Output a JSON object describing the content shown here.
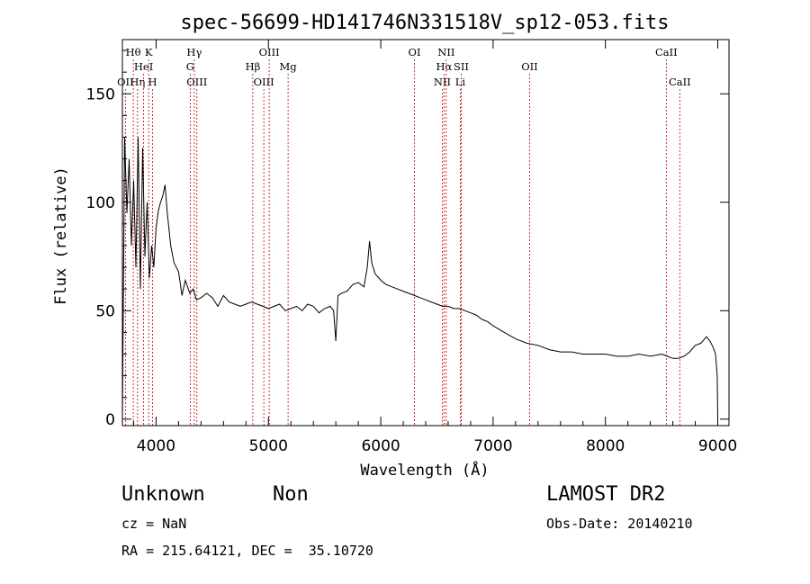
{
  "chart_data": {
    "type": "line",
    "title": "spec-56699-HD141746N331518V_sp12-053.fits",
    "xlabel": "Wavelength (Å)",
    "ylabel": "Flux (relative)",
    "xlim": [
      3700,
      9100
    ],
    "ylim": [
      -3,
      175
    ],
    "xticks": [
      4000,
      5000,
      6000,
      7000,
      8000,
      9000
    ],
    "yticks": [
      0,
      50,
      100,
      150
    ],
    "grid": false,
    "series": [
      {
        "x": [
          3700,
          3720,
          3740,
          3760,
          3780,
          3800,
          3820,
          3840,
          3860,
          3880,
          3900,
          3920,
          3940,
          3960,
          3980,
          4000,
          4020,
          4040,
          4060,
          4080,
          4100,
          4130,
          4160,
          4200,
          4230,
          4260,
          4300,
          4330,
          4360,
          4400,
          4450,
          4500,
          4550,
          4600,
          4650,
          4700,
          4750,
          4800,
          4850,
          4900,
          4950,
          5000,
          5050,
          5100,
          5150,
          5200,
          5250,
          5300,
          5350,
          5400,
          5450,
          5500,
          5550,
          5580,
          5600,
          5620,
          5650,
          5700,
          5750,
          5800,
          5850,
          5880,
          5900,
          5920,
          5950,
          6000,
          6050,
          6100,
          6150,
          6200,
          6250,
          6300,
          6350,
          6400,
          6450,
          6500,
          6550,
          6600,
          6650,
          6700,
          6750,
          6800,
          6850,
          6900,
          6950,
          7000,
          7100,
          7200,
          7300,
          7400,
          7500,
          7600,
          7700,
          7800,
          7900,
          8000,
          8100,
          8200,
          8300,
          8400,
          8500,
          8550,
          8600,
          8650,
          8700,
          8750,
          8800,
          8850,
          8900,
          8930,
          8960,
          8980,
          8995,
          9000
        ],
        "y": [
          0,
          130,
          95,
          120,
          80,
          110,
          70,
          130,
          60,
          125,
          75,
          100,
          65,
          80,
          70,
          88,
          96,
          100,
          103,
          108,
          95,
          80,
          72,
          68,
          57,
          64,
          58,
          60,
          55,
          56,
          58,
          56,
          52,
          57,
          54,
          53,
          52,
          53,
          54,
          53,
          52,
          51,
          52,
          53,
          50,
          51,
          52,
          50,
          53,
          52,
          49,
          51,
          52,
          50,
          36,
          57,
          58,
          59,
          62,
          63,
          61,
          70,
          82,
          72,
          67,
          64,
          62,
          61,
          60,
          59,
          58,
          57,
          56,
          55,
          54,
          53,
          52,
          52,
          51,
          51,
          50,
          49,
          48,
          46,
          45,
          43,
          40,
          37,
          35,
          34,
          32,
          31,
          31,
          30,
          30,
          30,
          29,
          29,
          30,
          29,
          30,
          29,
          28,
          28,
          29,
          31,
          34,
          35,
          38,
          36,
          33,
          30,
          20,
          0
        ]
      }
    ],
    "line_markers": [
      {
        "label": "OII",
        "x": 3727,
        "row": 3
      },
      {
        "label": "Hθ",
        "x": 3797,
        "row": 1
      },
      {
        "label": "Hη",
        "x": 3835,
        "row": 3
      },
      {
        "label": "HeI",
        "x": 3889,
        "row": 2
      },
      {
        "label": "K",
        "x": 3934,
        "row": 1
      },
      {
        "label": "H",
        "x": 3969,
        "row": 3
      },
      {
        "label": "Hγ",
        "x": 4340,
        "row": 1
      },
      {
        "label": "G",
        "x": 4304,
        "row": 2
      },
      {
        "label": "OIII",
        "x": 4363,
        "row": 3
      },
      {
        "label": "Hβ",
        "x": 4861,
        "row": 2
      },
      {
        "label": "OIII",
        "x": 4959,
        "row": 3
      },
      {
        "label": "OIII",
        "x": 5007,
        "row": 1
      },
      {
        "label": "Mg",
        "x": 5175,
        "row": 2
      },
      {
        "label": "OI",
        "x": 6300,
        "row": 1
      },
      {
        "label": "NII",
        "x": 6548,
        "row": 3
      },
      {
        "label": "Hα",
        "x": 6563,
        "row": 2
      },
      {
        "label": "NII",
        "x": 6583,
        "row": 1
      },
      {
        "label": "SII",
        "x": 6716,
        "row": 2
      },
      {
        "label": "Li",
        "x": 6708,
        "row": 3
      },
      {
        "label": "OII",
        "x": 7325,
        "row": 2
      },
      {
        "label": "CaII",
        "x": 8542,
        "row": 1
      },
      {
        "label": "CaII",
        "x": 8662,
        "row": 3
      }
    ]
  },
  "footer": {
    "object_class": "Unknown",
    "object_subclass": "Non",
    "survey": "LAMOST DR2",
    "cz": "cz = NaN",
    "obs_date": "Obs-Date: 20140210",
    "coords": "RA = 215.64121, DEC =  35.10720"
  }
}
